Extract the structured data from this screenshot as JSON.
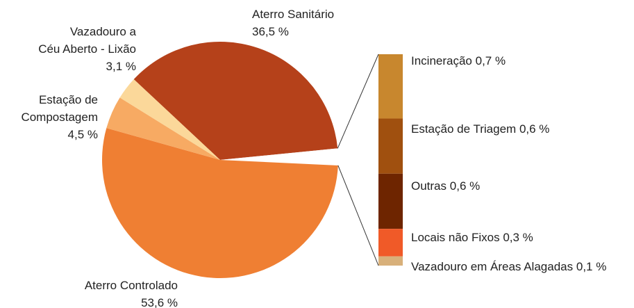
{
  "chart_data": {
    "type": "pie-of-bar",
    "pie": {
      "labels": [
        "Aterro Sanitário",
        null,
        "Aterro Controlado",
        "Estação de\nCompostagem",
        "Vazadouro a\nCéu Aberto - Lixão"
      ],
      "values": [
        36.5,
        2.3,
        53.6,
        4.5,
        3.1
      ],
      "value_labels": [
        "36,5 %",
        null,
        "53,6 %",
        "4,5 %",
        "3,1 %"
      ],
      "colors": [
        "#b5411a",
        "#ffffff",
        "#ef7f33",
        "#f7aa63",
        "#fbd89a"
      ]
    },
    "bar": {
      "labels": [
        "Incineração",
        "Estação de Triagem",
        "Outras",
        "Locais não Fixos",
        "Vazadouro em Áreas Alagadas"
      ],
      "values": [
        0.7,
        0.6,
        0.6,
        0.3,
        0.1
      ],
      "value_labels": [
        "0,7 %",
        "0,6 %",
        "0,6 %",
        "0,3 %",
        "0,1 %"
      ],
      "colors": [
        "#c8872e",
        "#a0500f",
        "#6e2500",
        "#f05a28",
        "#d8b07a"
      ]
    }
  }
}
